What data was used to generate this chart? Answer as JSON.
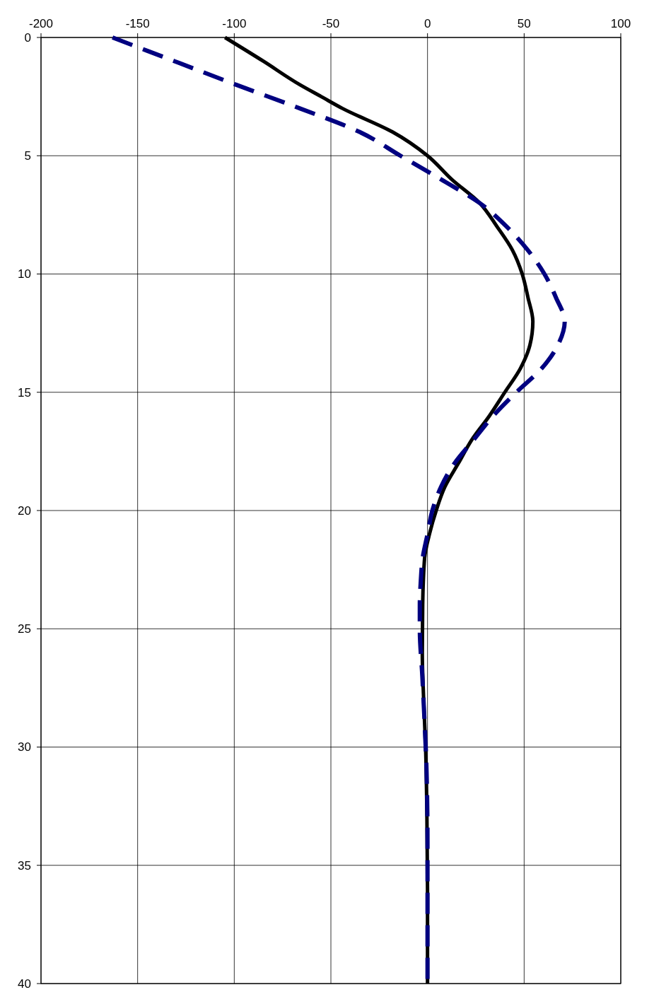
{
  "chart_data": {
    "type": "line",
    "xlim": [
      -200,
      100
    ],
    "xticks": [
      -200,
      -150,
      -100,
      -50,
      0,
      50,
      100
    ],
    "ylim": [
      40,
      0
    ],
    "yticks": [
      0,
      5,
      10,
      15,
      20,
      25,
      30,
      35,
      40
    ],
    "grid": true,
    "series": [
      {
        "color": "#000000",
        "line_style": "solid",
        "x": [
          -104.8,
          -85,
          -66,
          -55,
          -44,
          -18,
          0,
          12.5,
          27,
          36,
          44,
          49,
          52,
          54.5,
          53,
          48,
          40,
          32,
          23,
          16,
          9,
          4.5,
          1,
          -1.5,
          -2.5,
          -2.7,
          -2,
          -1,
          -0.3,
          0,
          0
        ],
        "values": [
          0,
          1,
          2,
          2.5,
          3,
          4,
          5,
          6,
          7,
          8,
          9,
          10,
          11,
          12,
          13,
          14,
          15,
          16,
          17,
          18,
          19,
          20,
          21,
          22,
          24,
          26,
          28,
          30,
          33,
          36,
          40
        ]
      },
      {
        "color": "#000080",
        "line_style": "dashed",
        "x": [
          -163,
          -131,
          -99,
          -66,
          -35,
          -14,
          7,
          27,
          41,
          52,
          60.5,
          66.5,
          71,
          67.5,
          59,
          46,
          34,
          24,
          14,
          7,
          2.5,
          0,
          -2.5,
          -3.5,
          -4,
          -4,
          -2.7,
          -1.5,
          -0.5,
          0,
          0
        ],
        "values": [
          0,
          1,
          2,
          3,
          4,
          5,
          6,
          7,
          8,
          9,
          10,
          11,
          12,
          13,
          14,
          15,
          16,
          17,
          18,
          19,
          20,
          21,
          22,
          23,
          24,
          25,
          27,
          29,
          31,
          34,
          40
        ]
      }
    ]
  }
}
